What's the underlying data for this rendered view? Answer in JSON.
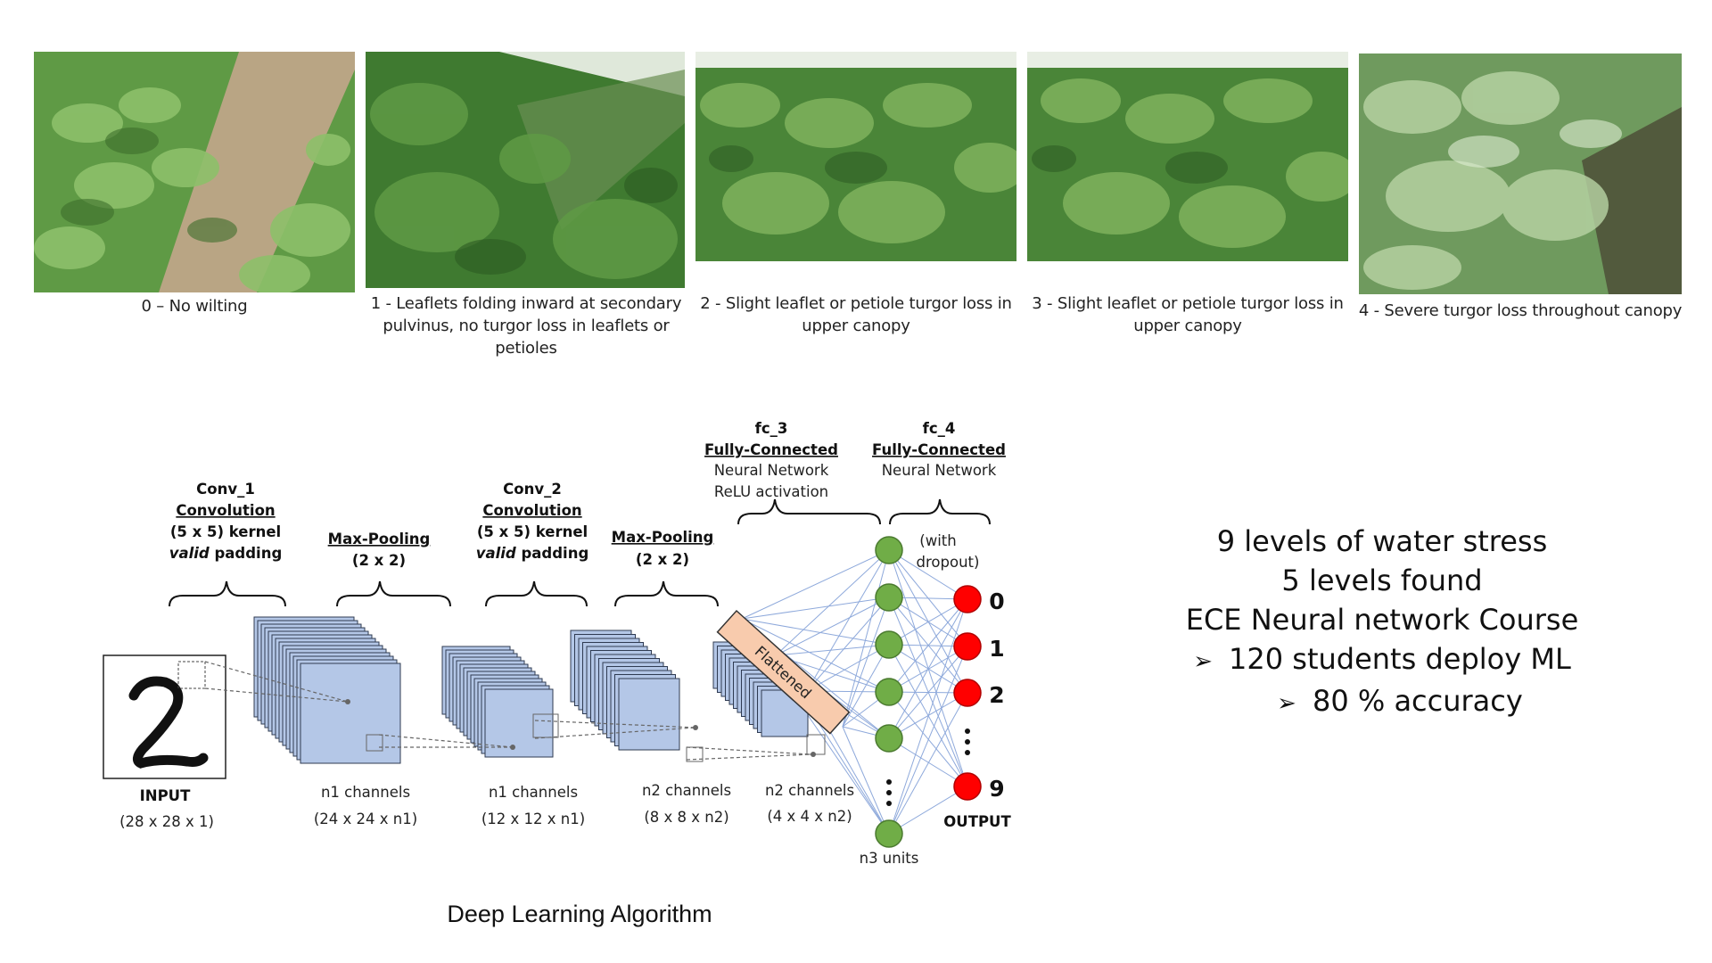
{
  "photos": [
    {
      "caption_line1": "0 – No wilting",
      "caption_line2": ""
    },
    {
      "caption_line1": "1 - Leaflets folding inward at secondary",
      "caption_line2": "pulvinus, no turgor loss in leaflets or petioles"
    },
    {
      "caption_line1": "2 - Slight leaflet or petiole turgor loss in",
      "caption_line2": "upper canopy"
    },
    {
      "caption_line1": "3 - Slight leaflet or petiole turgor loss in",
      "caption_line2": "upper canopy"
    },
    {
      "caption_line1": "4 - Severe turgor loss throughout canopy",
      "caption_line2": ""
    }
  ],
  "diagram": {
    "title": "Deep Learning Algorithm",
    "input": {
      "label": "INPUT",
      "dims": "(28 x 28 x 1)"
    },
    "conv1": {
      "name": "Conv_1",
      "type": "Convolution",
      "kernel": "(5 x 5) kernel",
      "padding_word": "valid",
      "padding_rest": " padding"
    },
    "pool1": {
      "name": "Max-Pooling",
      "size": "(2 x 2)"
    },
    "conv2": {
      "name": "Conv_2",
      "type": "Convolution",
      "kernel": "(5 x 5) kernel",
      "padding_word": "valid",
      "padding_rest": " padding"
    },
    "pool2": {
      "name": "Max-Pooling",
      "size": "(2 x 2)"
    },
    "fc3": {
      "name": "fc_3",
      "type": "Fully-Connected",
      "line1": "Neural Network",
      "line2": "ReLU activation"
    },
    "fc4": {
      "name": "fc_4",
      "type": "Fully-Connected",
      "line1": "Neural Network"
    },
    "dropout_line1": "(with",
    "dropout_line2": "dropout)",
    "flattened": "Flattened",
    "stage_labels": [
      {
        "channels": "n1 channels",
        "dims": "(24 x 24 x n1)"
      },
      {
        "channels": "n1 channels",
        "dims": "(12 x 12 x n1)"
      },
      {
        "channels": "n2 channels",
        "dims": "(8 x 8 x n2)"
      },
      {
        "channels": "n2 channels",
        "dims": "(4 x 4 x n2)"
      }
    ],
    "hidden_units": "n3 units",
    "output_label": "OUTPUT",
    "outputs": [
      "0",
      "1",
      "2",
      "9"
    ],
    "colors": {
      "feature_map": "#b4c7e7",
      "hidden_node": "#70ad47",
      "output_node": "#ff0000",
      "flatten": "#f8cbad",
      "connection": "#8ea9db"
    }
  },
  "summary": {
    "line1": "9 levels of water stress",
    "line2": "5 levels found",
    "line3": "ECE Neural network Course",
    "line4": "120 students deploy ML",
    "line5": "80 % accuracy",
    "bullet": "➢"
  }
}
